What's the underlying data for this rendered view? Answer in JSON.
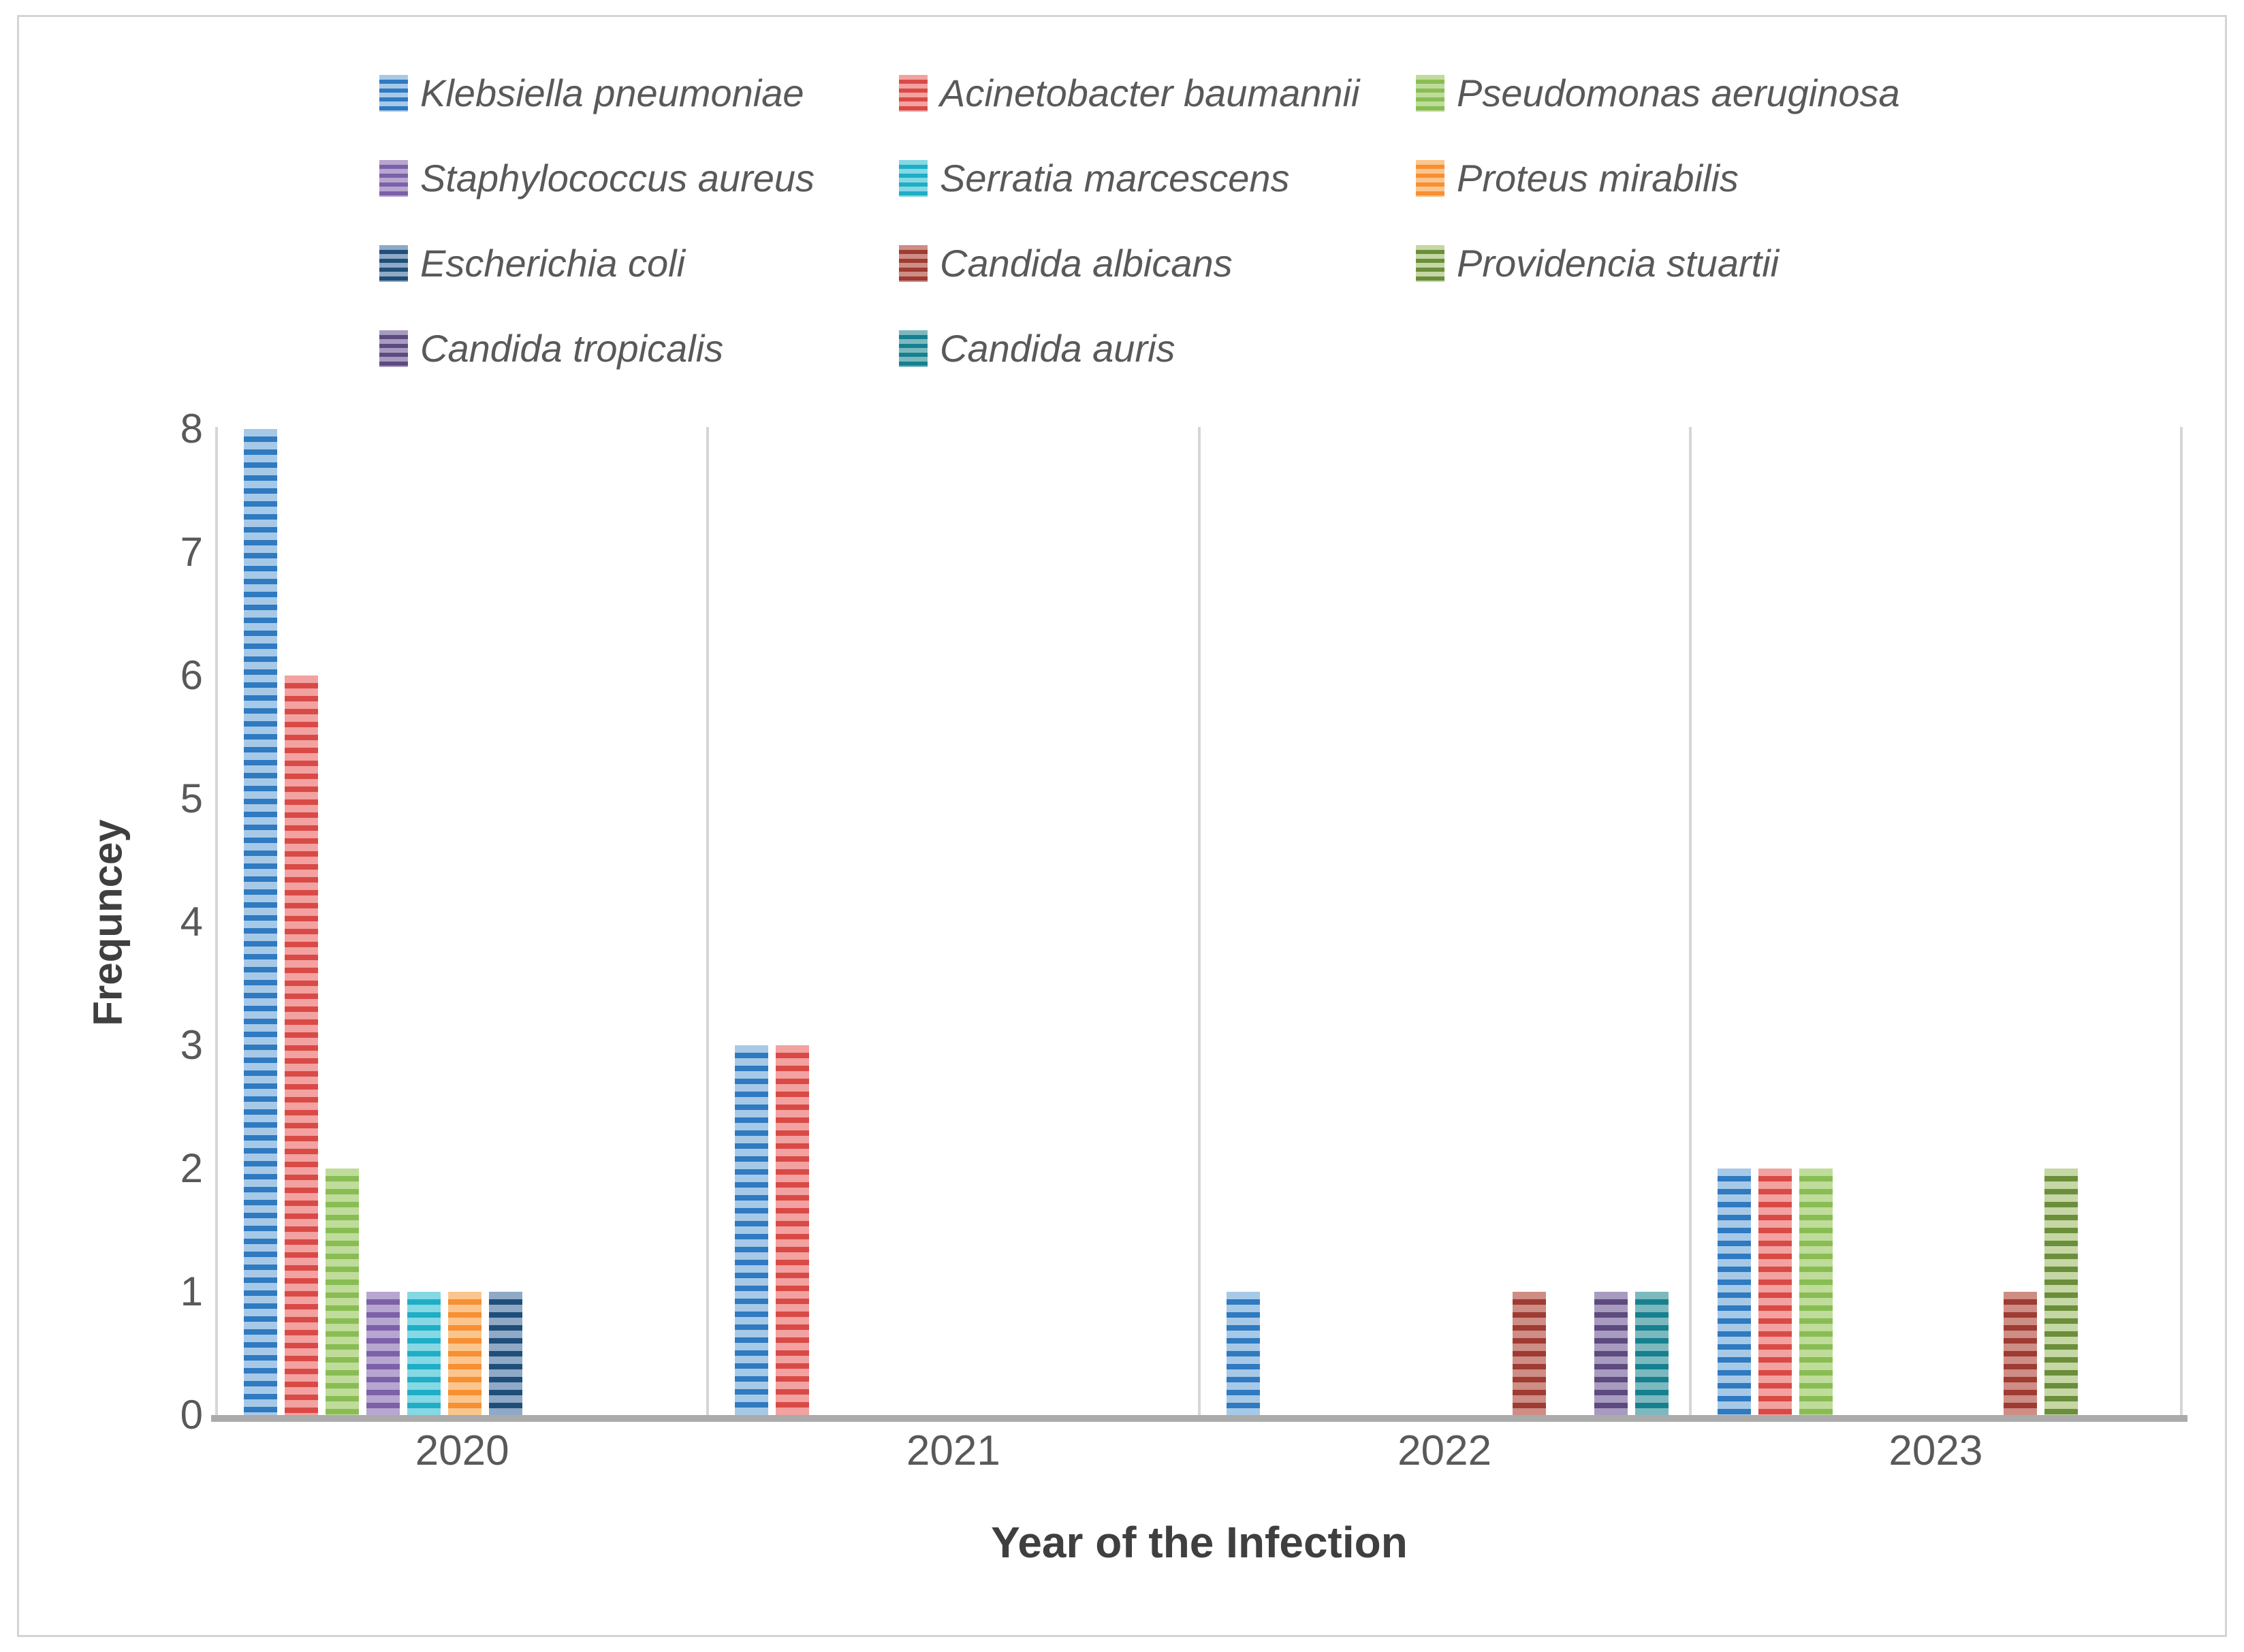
{
  "chart_data": {
    "type": "bar",
    "title": "",
    "xlabel": "Year of the Infection",
    "ylabel": "Frequncey",
    "ylim": [
      0,
      8
    ],
    "yticks": [
      0,
      1,
      2,
      3,
      4,
      5,
      6,
      7,
      8
    ],
    "categories": [
      "2020",
      "2021",
      "2022",
      "2023"
    ],
    "grid": "vertical category separator lines only",
    "legend_position": "top",
    "legend_text_style": "italic",
    "bar_pattern": "horizontal stripes",
    "axis_line_color": "#d6d6d6",
    "baseline_color": "#ababab",
    "text_color": "#595959",
    "series": [
      {
        "name": "Klebsiella pneumoniae",
        "values": [
          8,
          3,
          1,
          2
        ],
        "color_light": "#A7C9E8",
        "color_dark": "#2F7AC0"
      },
      {
        "name": "Acinetobacter baumannii",
        "values": [
          6,
          3,
          0,
          2
        ],
        "color_light": "#F2A2A0",
        "color_dark": "#D94A46"
      },
      {
        "name": "Pseudomonas aeruginosa",
        "values": [
          2,
          0,
          0,
          2
        ],
        "color_light": "#BFDC9A",
        "color_dark": "#89BD54"
      },
      {
        "name": "Staphylococcus aureus",
        "values": [
          1,
          0,
          0,
          0
        ],
        "color_light": "#B7A6CF",
        "color_dark": "#7C61A9"
      },
      {
        "name": "Serratia marcescens",
        "values": [
          1,
          0,
          0,
          0
        ],
        "color_light": "#86D8E4",
        "color_dark": "#1FAEC6"
      },
      {
        "name": "Proteus mirabilis",
        "values": [
          1,
          0,
          0,
          0
        ],
        "color_light": "#FBC68D",
        "color_dark": "#F78F33"
      },
      {
        "name": "Escherichia coli",
        "values": [
          1,
          0,
          0,
          0
        ],
        "color_light": "#8FA9C6",
        "color_dark": "#1F4E79"
      },
      {
        "name": "Candida albicans",
        "values": [
          0,
          0,
          1,
          1
        ],
        "color_light": "#CE8D85",
        "color_dark": "#9E3B33"
      },
      {
        "name": "Providencia stuartii",
        "values": [
          0,
          0,
          0,
          2
        ],
        "color_light": "#C4D7A4",
        "color_dark": "#6B8E3B"
      },
      {
        "name": "Candida tropicalis",
        "values": [
          0,
          0,
          1,
          0
        ],
        "color_light": "#A89BC0",
        "color_dark": "#5D4A7E"
      },
      {
        "name": "Candida auris",
        "values": [
          0,
          0,
          1,
          0
        ],
        "color_light": "#7CB9BF",
        "color_dark": "#17808F"
      }
    ]
  }
}
